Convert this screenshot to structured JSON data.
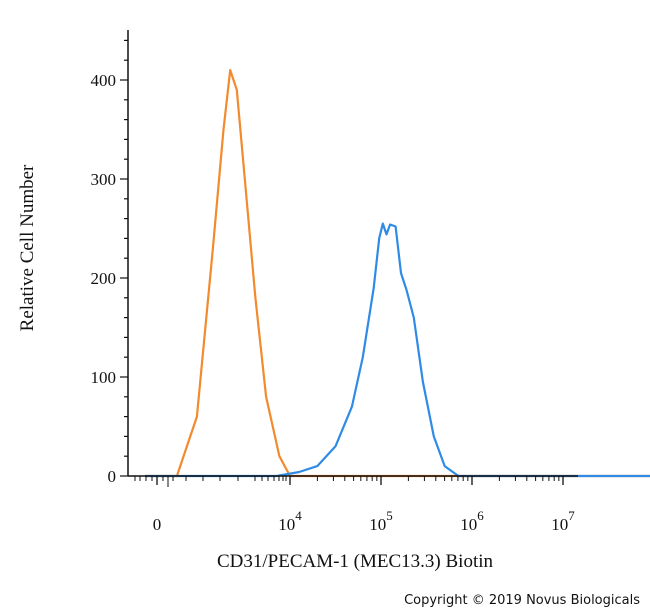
{
  "chart_data": {
    "type": "line",
    "xlabel": "CD31/PECAM-1 (MEC13.3) Biotin",
    "ylabel": "Relative Cell Number",
    "x_scale": "biexponential",
    "x_ticks": [
      {
        "base": "0",
        "exp": ""
      },
      {
        "base": "10",
        "exp": "4"
      },
      {
        "base": "10",
        "exp": "5"
      },
      {
        "base": "10",
        "exp": "6"
      },
      {
        "base": "10",
        "exp": "7"
      }
    ],
    "y_ticks": [
      "0",
      "100",
      "200",
      "300",
      "400"
    ],
    "ylim": [
      0,
      460
    ],
    "grid": false,
    "series": [
      {
        "color": "#f28a2e",
        "points": [
          [
            -0.2,
            0
          ],
          [
            0.15,
            0
          ],
          [
            0.3,
            60
          ],
          [
            0.42,
            230
          ],
          [
            0.5,
            350
          ],
          [
            0.55,
            410
          ],
          [
            0.6,
            390
          ],
          [
            0.66,
            300
          ],
          [
            0.74,
            180
          ],
          [
            0.82,
            80
          ],
          [
            0.92,
            20
          ],
          [
            1.0,
            0
          ],
          [
            5.1,
            0
          ]
        ]
      },
      {
        "color": "#2f8be6",
        "points": [
          [
            -0.2,
            0
          ],
          [
            0.9,
            0
          ],
          [
            1.1,
            4
          ],
          [
            1.3,
            10
          ],
          [
            1.5,
            30
          ],
          [
            1.68,
            70
          ],
          [
            1.8,
            120
          ],
          [
            1.92,
            190
          ],
          [
            1.98,
            240
          ],
          [
            2.02,
            255
          ],
          [
            2.06,
            244
          ],
          [
            2.1,
            254
          ],
          [
            2.16,
            252
          ],
          [
            2.22,
            205
          ],
          [
            2.28,
            188
          ],
          [
            2.36,
            160
          ],
          [
            2.46,
            95
          ],
          [
            2.58,
            40
          ],
          [
            2.7,
            10
          ],
          [
            2.85,
            0
          ],
          [
            5.1,
            0
          ]
        ]
      }
    ]
  },
  "copyright": "Copyright © 2019 Novus Biologicals"
}
